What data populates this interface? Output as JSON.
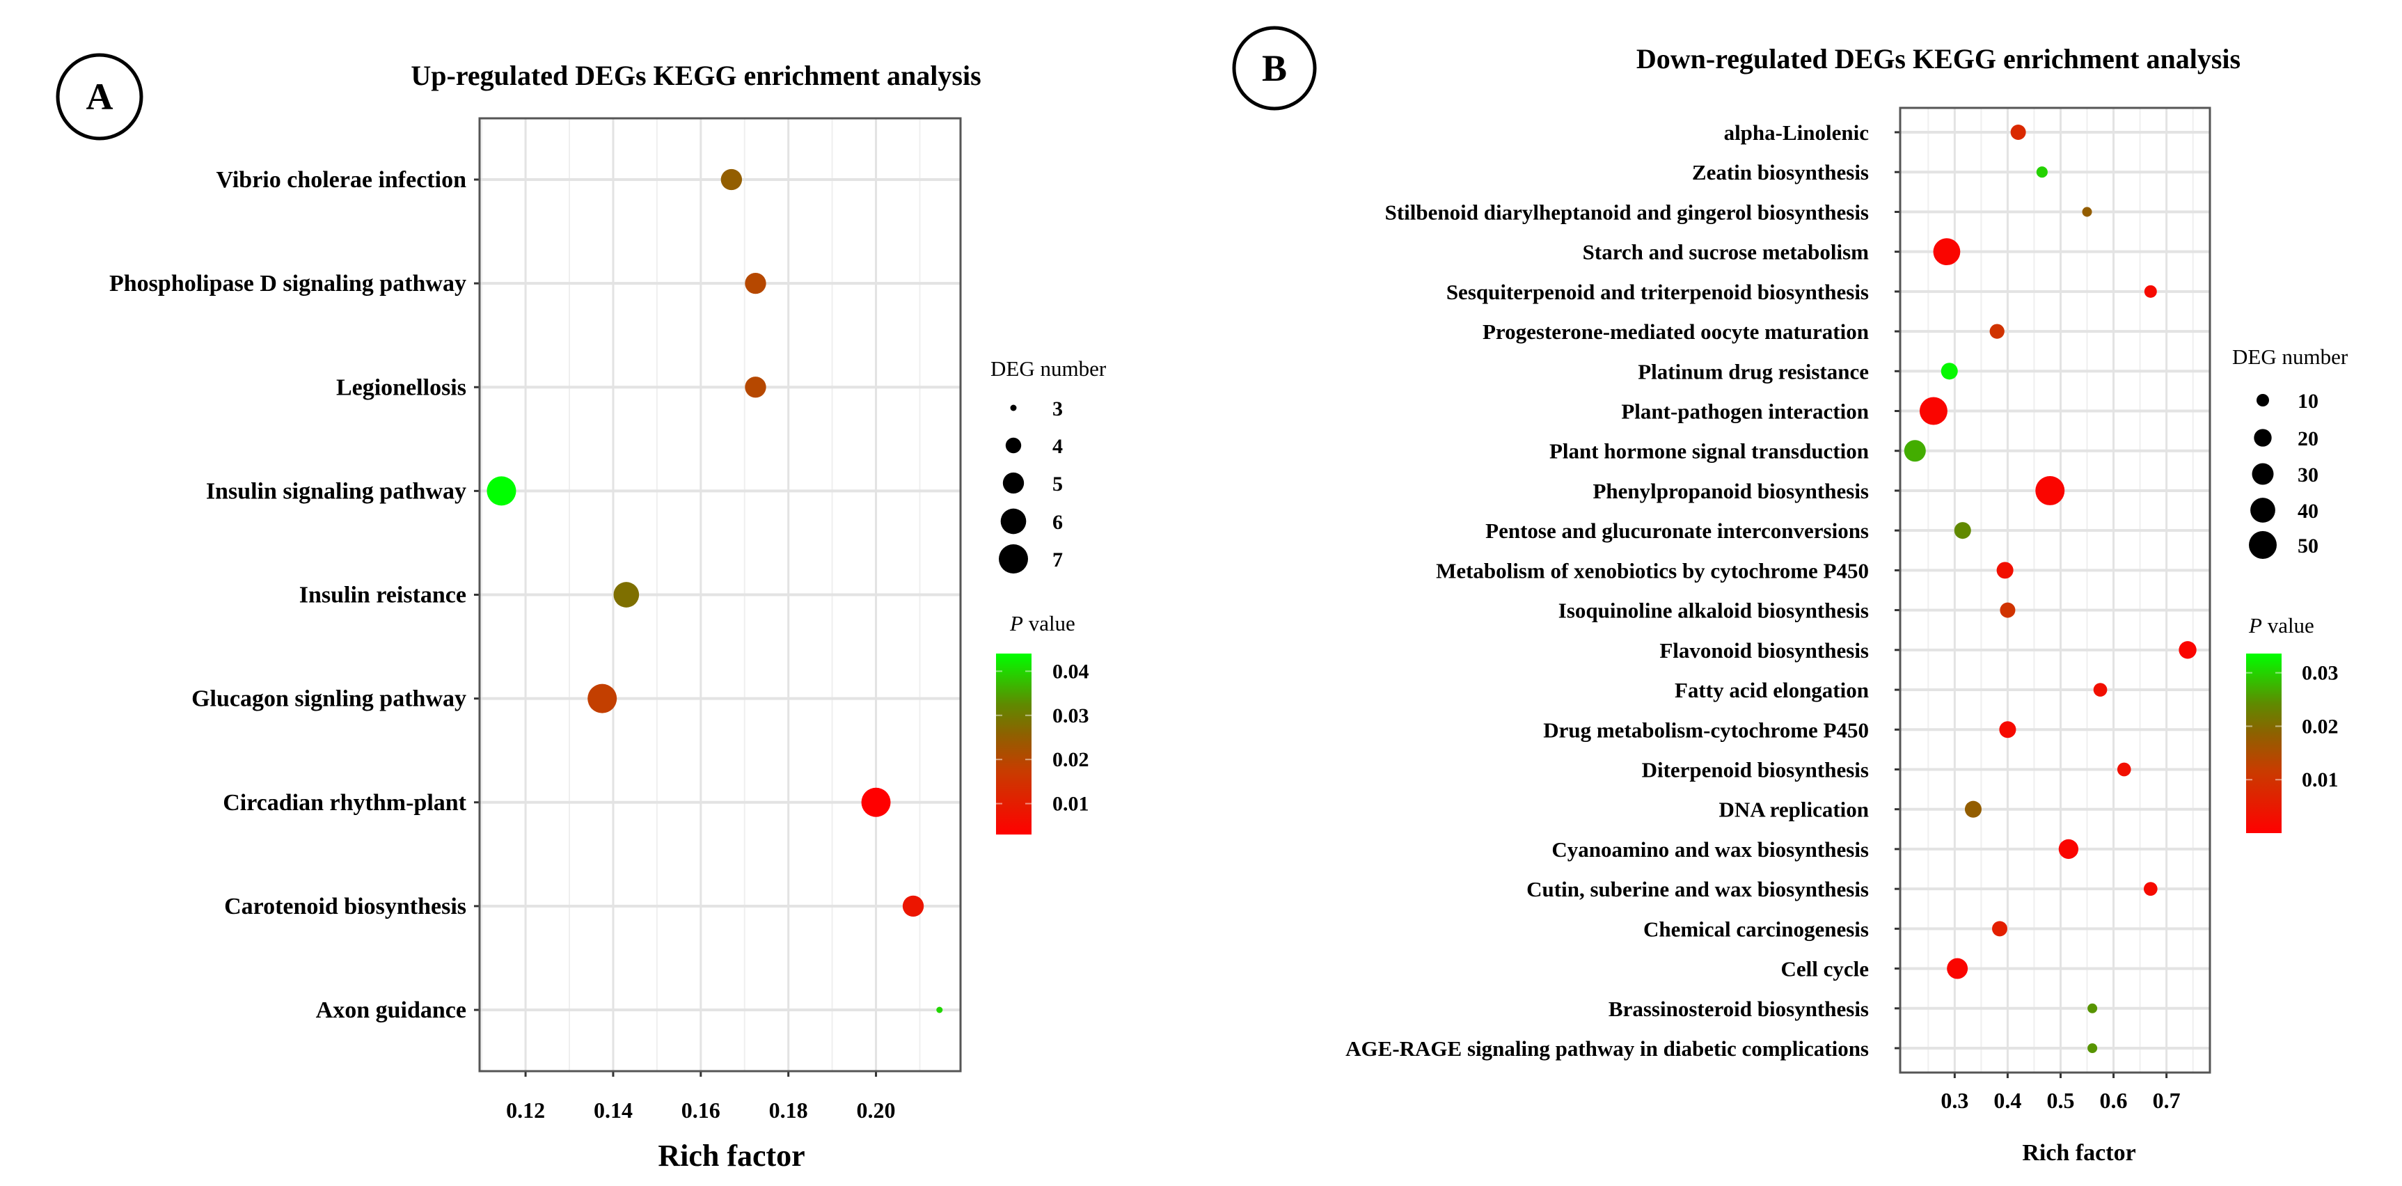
{
  "chart_data": [
    {
      "type": "scatter",
      "panel_label": "A",
      "title": "Up-regulated DEGs KEGG enrichment analysis",
      "xlabel": "Rich factor",
      "ylabel": "",
      "xlim": [
        0.1095,
        0.2193
      ],
      "xticks": [
        0.12,
        0.14,
        0.16,
        0.18,
        0.2
      ],
      "xtick_labels": [
        "0.12",
        "0.14",
        "0.16",
        "0.18",
        "0.20"
      ],
      "grid": true,
      "legend_placement": "right",
      "size_legend": {
        "title": "DEG number",
        "values": [
          3,
          4,
          5,
          6,
          7
        ],
        "labels": [
          "3",
          "4",
          "5",
          "6",
          "7"
        ]
      },
      "color_legend": {
        "title_italic": "P",
        "title_rest": " value",
        "range": [
          0.003,
          0.044
        ],
        "ticks": [
          0.04,
          0.03,
          0.02,
          0.01
        ],
        "tick_labels": [
          "0.04",
          "0.03",
          "0.02",
          "0.01"
        ]
      },
      "categories": [
        "Vibrio cholerae infection",
        "Phospholipase D signaling pathway",
        "Legionellosis",
        "Insulin signaling pathway",
        "Insulin reistance",
        "Glucagon signling pathway",
        "Circadian rhythm-plant",
        "Carotenoid biosynthesis",
        "Axon guidance"
      ],
      "rich_factor": [
        0.167,
        0.1725,
        0.1725,
        0.1145,
        0.143,
        0.1375,
        0.2,
        0.2085,
        0.2145
      ],
      "deg_number": [
        5,
        5,
        5,
        7,
        6,
        7,
        7,
        5,
        3
      ],
      "p_value": [
        0.025,
        0.02,
        0.02,
        0.044,
        0.028,
        0.018,
        0.003,
        0.008,
        0.04
      ]
    },
    {
      "type": "scatter",
      "panel_label": "B",
      "title": "Down-regulated DEGs KEGG enrichment analysis",
      "xlabel": "Rich factor",
      "ylabel": "",
      "xlim": [
        0.197,
        0.782
      ],
      "xticks": [
        0.3,
        0.4,
        0.5,
        0.6,
        0.7
      ],
      "xtick_labels": [
        "0.3",
        "0.4",
        "0.5",
        "0.6",
        "0.7"
      ],
      "grid": true,
      "legend_placement": "right",
      "size_legend": {
        "title": "DEG number",
        "values": [
          10,
          20,
          30,
          40,
          50
        ],
        "labels": [
          "10",
          "20",
          "30",
          "40",
          "50"
        ]
      },
      "color_legend": {
        "title_italic": "P",
        "title_rest": " value",
        "range": [
          0.0,
          0.0336
        ],
        "ticks": [
          0.03,
          0.02,
          0.01
        ],
        "tick_labels": [
          "0.03",
          "0.02",
          "0.01"
        ]
      },
      "categories": [
        "alpha-Linolenic",
        "Zeatin biosynthesis",
        "Stilbenoid diarylheptanoid and gingerol biosynthesis",
        "Starch and sucrose metabolism",
        "Sesquiterpenoid and triterpenoid biosynthesis",
        "Progesterone-mediated oocyte maturation",
        "Platinum drug resistance",
        "Plant-pathogen interaction",
        "Plant hormone signal transduction",
        "Phenylpropanoid biosynthesis",
        "Pentose and glucuronate interconversions",
        "Metabolism of xenobiotics by cytochrome P450",
        "Isoquinoline alkaloid biosynthesis",
        "Flavonoid biosynthesis",
        "Fatty acid elongation",
        "Drug metabolism-cytochrome P450",
        "Diterpenoid biosynthesis",
        "DNA replication",
        "Cyanoamino and wax biosynthesis",
        "Cutin, suberine and wax biosynthesis",
        "Chemical carcinogenesis",
        "Cell cycle",
        "Brassinosteroid biosynthesis",
        "AGE-RAGE signaling pathway in diabetic complications"
      ],
      "rich_factor": [
        0.42,
        0.465,
        0.55,
        0.285,
        0.67,
        0.38,
        0.29,
        0.26,
        0.225,
        0.48,
        0.315,
        0.395,
        0.4,
        0.74,
        0.575,
        0.4,
        0.62,
        0.335,
        0.515,
        0.67,
        0.385,
        0.305,
        0.56,
        0.56
      ],
      "deg_number": [
        15,
        8,
        6,
        47,
        10,
        14,
        18,
        50,
        30,
        55,
        18,
        18,
        15,
        20,
        12,
        18,
        12,
        18,
        25,
        12,
        15,
        28,
        6,
        6
      ],
      "p_value": [
        0.008,
        0.03,
        0.018,
        0.001,
        0.002,
        0.01,
        0.033,
        0.001,
        0.027,
        0.001,
        0.024,
        0.003,
        0.01,
        0.001,
        0.003,
        0.002,
        0.003,
        0.018,
        0.001,
        0.002,
        0.006,
        0.001,
        0.025,
        0.025
      ]
    }
  ],
  "colors": {
    "low": "#ff0000",
    "mid": "#8f6000",
    "high": "#00ff00",
    "grid": "#e3e3e3",
    "frame": "#555555"
  }
}
